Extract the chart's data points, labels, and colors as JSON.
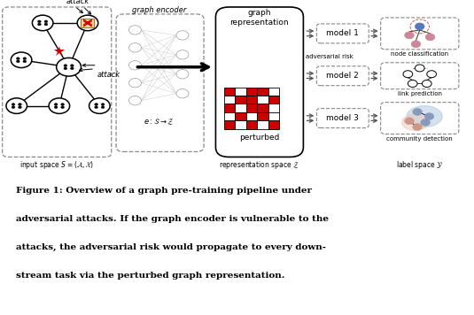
{
  "bg_color": "#ffffff",
  "fig_width": 5.35,
  "fig_height": 3.56,
  "caption_lines": [
    "Figure 1: Overview of a graph pre-training pipeline under",
    "adversarial attacks. If the graph encoder is vulnerable to the",
    "attacks, the adversarial risk would propagate to every down-",
    "stream task via the perturbed graph representation."
  ],
  "input_label": "input space $S = (\\mathcal{A}, \\mathcal{X})$",
  "repr_label": "representation space $\\mathcal{Z}$",
  "label_space_label": "label space $\\mathcal{Y}$",
  "graph_encoder_text": "graph encoder",
  "graph_encoder_formula": "$e : \\mathcal{S} \\rightarrow \\mathcal{Z}$",
  "graph_repr_text": "graph\nrepresentation",
  "perturbed_text": "perturbed",
  "adversarial_risk_text": "adversarial risk",
  "model1_text": "model 1",
  "model2_text": "model 2",
  "model3_text": "model 3",
  "node_class_text": "node classification",
  "link_pred_text": "link prediction",
  "comm_det_text": "community detection",
  "red_color": "#cc0000",
  "node_blue": "#5577bb",
  "node_pink": "#cc8899",
  "node_teal": "#7799aa"
}
